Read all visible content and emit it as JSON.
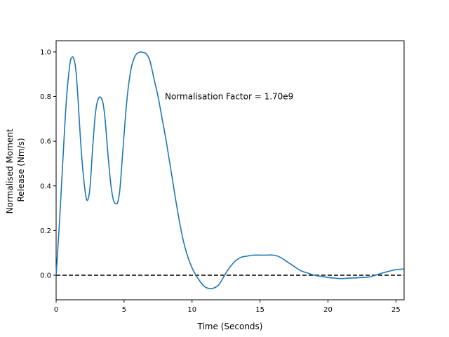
{
  "chart_data": {
    "type": "line",
    "xlabel": "Time (Seconds)",
    "ylabel_lines": [
      "Normalised Moment",
      "Release (Nm/s)"
    ],
    "xlim": [
      0,
      25.6
    ],
    "ylim": [
      -0.11,
      1.05
    ],
    "xticks": [
      0,
      5,
      10,
      15,
      20,
      25
    ],
    "yticks": [
      0.0,
      0.2,
      0.4,
      0.6,
      0.8,
      1.0
    ],
    "grid": false,
    "annotation": {
      "text": "Normalisation Factor = 1.70e9",
      "x": 8.0,
      "y": 0.8
    },
    "reference_line": {
      "y": 0,
      "style": "dashed",
      "color": "#000000"
    },
    "series": [
      {
        "color": "#1f77b4",
        "x": [
          0,
          0.25,
          0.5,
          0.75,
          1.0,
          1.15,
          1.3,
          1.45,
          1.6,
          1.8,
          2.0,
          2.2,
          2.35,
          2.5,
          2.7,
          2.9,
          3.1,
          3.3,
          3.45,
          3.6,
          3.8,
          4.0,
          4.2,
          4.4,
          4.55,
          4.7,
          4.9,
          5.2,
          5.5,
          5.8,
          6.1,
          6.4,
          6.65,
          6.9,
          7.2,
          7.5,
          7.8,
          8.1,
          8.5,
          8.9,
          9.3,
          9.7,
          10.1,
          10.5,
          10.9,
          11.3,
          11.7,
          12.0,
          12.3,
          12.6,
          12.9,
          13.2,
          13.6,
          14.0,
          14.5,
          15.0,
          15.5,
          16.0,
          16.5,
          17.0,
          17.5,
          18.0,
          18.5,
          19.0,
          19.5,
          20.0,
          20.5,
          21.0,
          21.5,
          22.0,
          22.5,
          23.0,
          23.5,
          24.0,
          24.5,
          25.0,
          25.6
        ],
        "y": [
          0.0,
          0.24,
          0.52,
          0.78,
          0.94,
          0.975,
          0.97,
          0.92,
          0.8,
          0.6,
          0.45,
          0.35,
          0.34,
          0.4,
          0.58,
          0.73,
          0.79,
          0.795,
          0.77,
          0.7,
          0.55,
          0.42,
          0.34,
          0.32,
          0.33,
          0.39,
          0.55,
          0.78,
          0.92,
          0.98,
          0.998,
          0.998,
          0.99,
          0.96,
          0.88,
          0.8,
          0.7,
          0.6,
          0.45,
          0.3,
          0.17,
          0.08,
          0.02,
          -0.02,
          -0.05,
          -0.06,
          -0.055,
          -0.04,
          -0.01,
          0.02,
          0.045,
          0.065,
          0.08,
          0.085,
          0.09,
          0.09,
          0.09,
          0.09,
          0.08,
          0.06,
          0.04,
          0.02,
          0.01,
          0.0,
          -0.005,
          -0.01,
          -0.013,
          -0.015,
          -0.013,
          -0.012,
          -0.01,
          -0.008,
          0.0,
          0.01,
          0.018,
          0.025,
          0.028
        ]
      }
    ]
  }
}
